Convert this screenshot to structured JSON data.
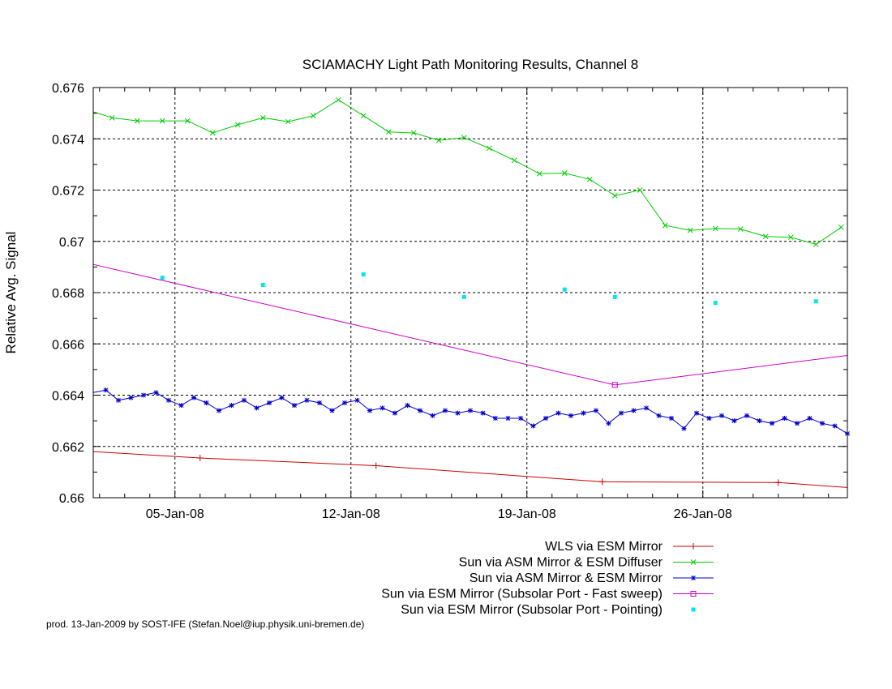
{
  "chart_data": {
    "type": "line",
    "title": "SCIAMACHY Light Path Monitoring Results, Channel 8",
    "xlabel": "",
    "ylabel": "Relative Avg. Signal",
    "xlim": [
      "2008-01-01T18:00",
      "2008-01-31T18:00"
    ],
    "ylim": [
      0.66,
      0.676
    ],
    "y_tick_labels": [
      "0.66",
      "0.662",
      "0.664",
      "0.666",
      "0.668",
      "0.67",
      "0.672",
      "0.674",
      "0.676"
    ],
    "x_ticks": [
      {
        "date": "2008-01-05",
        "label": "05-Jan-08"
      },
      {
        "date": "2008-01-12",
        "label": "12-Jan-08"
      },
      {
        "date": "2008-01-19",
        "label": "19-Jan-08"
      },
      {
        "date": "2008-01-26",
        "label": "26-Jan-08"
      }
    ],
    "grid": true,
    "legend_position": "bottom-right",
    "series": [
      {
        "name": "WLS via ESM Mirror",
        "color": "#cc0000",
        "marker": "plus",
        "style": "line",
        "x": [
          "2008-01-01T18:00",
          "2008-01-06T00:00",
          "2008-01-13T00:00",
          "2008-01-22T00:00",
          "2008-01-29T00:00",
          "2008-01-31T18:00"
        ],
        "y": [
          0.6618,
          0.66155,
          0.66125,
          0.66062,
          0.66059,
          0.6604
        ],
        "marker_x": [
          "2008-01-06T00:00",
          "2008-01-13T00:00",
          "2008-01-22T00:00",
          "2008-01-29T00:00"
        ]
      },
      {
        "name": "Sun via ASM Mirror & ESM Diffuser",
        "color": "#00cc00",
        "marker": "cross",
        "style": "linespoints",
        "x": [
          "2008-01-01T18:00",
          "2008-01-02T12:00",
          "2008-01-03T12:00",
          "2008-01-04T12:00",
          "2008-01-05T12:00",
          "2008-01-06T12:00",
          "2008-01-07T12:00",
          "2008-01-08T12:00",
          "2008-01-09T12:00",
          "2008-01-10T12:00",
          "2008-01-11T12:00",
          "2008-01-12T12:00",
          "2008-01-13T12:00",
          "2008-01-14T12:00",
          "2008-01-15T12:00",
          "2008-01-16T12:00",
          "2008-01-17T12:00",
          "2008-01-18T12:00",
          "2008-01-19T12:00",
          "2008-01-20T12:00",
          "2008-01-21T12:00",
          "2008-01-22T12:00",
          "2008-01-23T12:00",
          "2008-01-24T12:00",
          "2008-01-25T12:00",
          "2008-01-26T12:00",
          "2008-01-27T12:00",
          "2008-01-28T12:00",
          "2008-01-29T12:00",
          "2008-01-30T12:00",
          "2008-01-31T12:00"
        ],
        "y": [
          0.67505,
          0.67482,
          0.6747,
          0.6747,
          0.6747,
          0.67423,
          0.67455,
          0.67482,
          0.67467,
          0.6749,
          0.67552,
          0.6749,
          0.67427,
          0.67423,
          0.67394,
          0.67405,
          0.67363,
          0.67316,
          0.67264,
          0.67266,
          0.67242,
          0.67178,
          0.672,
          0.67062,
          0.67043,
          0.6705,
          0.67048,
          0.67019,
          0.67016,
          0.66988,
          0.67055
        ]
      },
      {
        "name": "Sun via ASM Mirror & ESM Mirror",
        "color": "#0000cc",
        "marker": "star",
        "style": "linespoints",
        "x": [
          "2008-01-01T18:00",
          "2008-01-02T06:00",
          "2008-01-02T18:00",
          "2008-01-03T06:00",
          "2008-01-03T18:00",
          "2008-01-04T06:00",
          "2008-01-04T18:00",
          "2008-01-05T06:00",
          "2008-01-05T18:00",
          "2008-01-06T06:00",
          "2008-01-06T18:00",
          "2008-01-07T06:00",
          "2008-01-07T18:00",
          "2008-01-08T06:00",
          "2008-01-08T18:00",
          "2008-01-09T06:00",
          "2008-01-09T18:00",
          "2008-01-10T06:00",
          "2008-01-10T18:00",
          "2008-01-11T06:00",
          "2008-01-11T18:00",
          "2008-01-12T06:00",
          "2008-01-12T18:00",
          "2008-01-13T06:00",
          "2008-01-13T18:00",
          "2008-01-14T06:00",
          "2008-01-14T18:00",
          "2008-01-15T06:00",
          "2008-01-15T18:00",
          "2008-01-16T06:00",
          "2008-01-16T18:00",
          "2008-01-17T06:00",
          "2008-01-17T18:00",
          "2008-01-18T06:00",
          "2008-01-18T18:00",
          "2008-01-19T06:00",
          "2008-01-19T18:00",
          "2008-01-20T06:00",
          "2008-01-20T18:00",
          "2008-01-21T06:00",
          "2008-01-21T18:00",
          "2008-01-22T06:00",
          "2008-01-22T18:00",
          "2008-01-23T06:00",
          "2008-01-23T18:00",
          "2008-01-24T06:00",
          "2008-01-24T18:00",
          "2008-01-25T06:00",
          "2008-01-25T18:00",
          "2008-01-26T06:00",
          "2008-01-26T18:00",
          "2008-01-27T06:00",
          "2008-01-27T18:00",
          "2008-01-28T06:00",
          "2008-01-28T18:00",
          "2008-01-29T06:00",
          "2008-01-29T18:00",
          "2008-01-30T06:00",
          "2008-01-30T18:00",
          "2008-01-31T06:00",
          "2008-01-31T18:00"
        ],
        "y": [
          0.6641,
          0.6642,
          0.6638,
          0.6639,
          0.664,
          0.6641,
          0.6638,
          0.6636,
          0.6639,
          0.6637,
          0.6634,
          0.6636,
          0.6638,
          0.6635,
          0.6637,
          0.6639,
          0.6636,
          0.6638,
          0.6637,
          0.6634,
          0.6637,
          0.6638,
          0.6634,
          0.6635,
          0.6633,
          0.6636,
          0.6634,
          0.6632,
          0.6634,
          0.6633,
          0.6634,
          0.6633,
          0.6631,
          0.6631,
          0.6631,
          0.6628,
          0.6631,
          0.6633,
          0.6632,
          0.6633,
          0.6634,
          0.6629,
          0.6633,
          0.6634,
          0.6635,
          0.6632,
          0.6631,
          0.6627,
          0.6633,
          0.6631,
          0.6632,
          0.663,
          0.6632,
          0.663,
          0.6629,
          0.6631,
          0.6629,
          0.6631,
          0.6629,
          0.6628,
          0.6625
        ]
      },
      {
        "name": "Sun via ESM Mirror (Subsolar Port - Fast sweep)",
        "color": "#cc00cc",
        "marker": "square",
        "style": "line",
        "x": [
          "2008-01-01T18:00",
          "2008-01-22T12:00",
          "2008-01-31T18:00"
        ],
        "y": [
          0.6691,
          0.6644,
          0.66555
        ],
        "marker_x": [
          "2008-01-22T12:00"
        ]
      },
      {
        "name": "Sun via ESM Mirror (Subsolar Port - Pointing)",
        "color": "#00e5ee",
        "marker": "dot",
        "style": "points",
        "x": [
          "2008-01-04T12:00",
          "2008-01-08T12:00",
          "2008-01-12T12:00",
          "2008-01-16T12:00",
          "2008-01-20T12:00",
          "2008-01-22T12:00",
          "2008-01-26T12:00",
          "2008-01-30T12:00"
        ],
        "y": [
          0.66858,
          0.6683,
          0.66871,
          0.66783,
          0.66812,
          0.66783,
          0.6676,
          0.66766
        ]
      }
    ]
  },
  "footer": {
    "credit": "prod. 13-Jan-2009 by SOST-IFE (Stefan.Noel@iup.physik.uni-bremen.de)"
  }
}
